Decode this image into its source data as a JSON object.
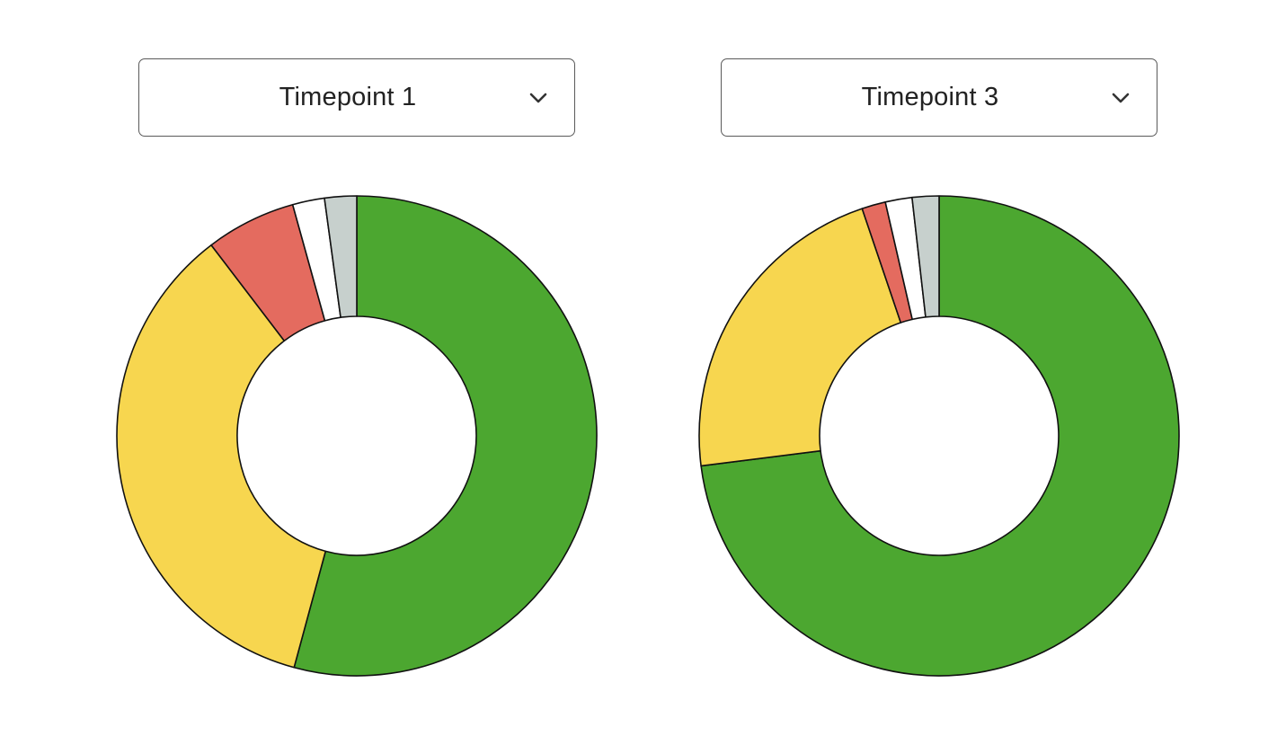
{
  "colors": {
    "green": "#4ca730",
    "yellow": "#f7d64f",
    "red": "#e46b5f",
    "white": "#ffffff",
    "gray": "#c7d0cd",
    "outline": "#111111"
  },
  "selectors": [
    {
      "selected": "Timepoint 1",
      "icon": "chevron-down-icon"
    },
    {
      "selected": "Timepoint 3",
      "icon": "chevron-down-icon"
    }
  ],
  "chart_data": [
    {
      "type": "pie",
      "variant": "donut",
      "title": "",
      "start": "12 o'clock",
      "direction": "clockwise",
      "legend": "none",
      "slices": [
        {
          "value": 55.4,
          "color": "green"
        },
        {
          "value": 36.2,
          "color": "yellow"
        },
        {
          "value": 6.2,
          "color": "red"
        },
        {
          "value": 2.2,
          "color": "white"
        },
        {
          "value": 2.2,
          "color": "gray"
        }
      ]
    },
    {
      "type": "pie",
      "variant": "donut",
      "title": "",
      "start": "12 o'clock",
      "direction": "clockwise",
      "legend": "none",
      "slices": [
        {
          "value": 73.0,
          "color": "green"
        },
        {
          "value": 21.8,
          "color": "yellow"
        },
        {
          "value": 1.6,
          "color": "red"
        },
        {
          "value": 1.8,
          "color": "white"
        },
        {
          "value": 1.8,
          "color": "gray"
        }
      ]
    }
  ]
}
